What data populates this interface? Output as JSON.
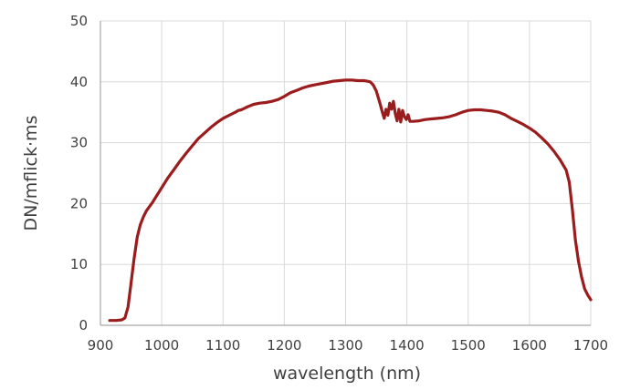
{
  "chart_data": {
    "type": "line",
    "title": "",
    "xlabel": "wavelength (nm)",
    "ylabel": "DN/mflick·ms",
    "xlim": [
      900,
      1700
    ],
    "ylim": [
      0,
      50
    ],
    "xticks": [
      900,
      1000,
      1100,
      1200,
      1300,
      1400,
      1500,
      1600,
      1700
    ],
    "yticks": [
      0,
      10,
      20,
      30,
      40,
      50
    ],
    "grid": true,
    "legend": "none",
    "colors": {
      "series": "#9b1c1c",
      "grid": "#d9d9d9",
      "axis": "#a6a6a6"
    },
    "series": [
      {
        "x": [
          915,
          925,
          935,
          940,
          945,
          950,
          955,
          960,
          965,
          970,
          975,
          980,
          985,
          990,
          1000,
          1010,
          1020,
          1030,
          1040,
          1050,
          1060,
          1070,
          1080,
          1090,
          1100,
          1110,
          1120,
          1125,
          1130,
          1140,
          1150,
          1160,
          1170,
          1180,
          1190,
          1200,
          1210,
          1220,
          1230,
          1240,
          1250,
          1260,
          1270,
          1280,
          1290,
          1300,
          1310,
          1320,
          1330,
          1335,
          1340,
          1345,
          1350,
          1353,
          1356,
          1360,
          1363,
          1366,
          1369,
          1372,
          1375,
          1378,
          1381,
          1384,
          1387,
          1390,
          1393,
          1396,
          1399,
          1402,
          1405,
          1410,
          1420,
          1430,
          1440,
          1450,
          1460,
          1470,
          1480,
          1490,
          1500,
          1510,
          1520,
          1530,
          1540,
          1550,
          1560,
          1570,
          1580,
          1590,
          1600,
          1610,
          1620,
          1630,
          1640,
          1650,
          1660,
          1665,
          1670,
          1675,
          1680,
          1685,
          1690,
          1695,
          1700
        ],
        "y": [
          0.8,
          0.8,
          0.9,
          1.2,
          3,
          7,
          11,
          14.5,
          16.5,
          17.8,
          18.8,
          19.5,
          20.2,
          21,
          22.6,
          24.2,
          25.6,
          27,
          28.3,
          29.5,
          30.7,
          31.6,
          32.5,
          33.3,
          34,
          34.5,
          35,
          35.3,
          35.4,
          35.9,
          36.3,
          36.5,
          36.6,
          36.8,
          37.1,
          37.6,
          38.2,
          38.6,
          39,
          39.3,
          39.5,
          39.7,
          39.9,
          40.1,
          40.2,
          40.3,
          40.3,
          40.2,
          40.2,
          40.1,
          40,
          39.5,
          38.5,
          37.5,
          36.5,
          35,
          34,
          35.5,
          34.5,
          36.5,
          35.5,
          36.8,
          34.8,
          33.6,
          35.5,
          33.4,
          35.3,
          34.3,
          33.8,
          34.6,
          33.5,
          33.5,
          33.6,
          33.8,
          33.9,
          34,
          34.1,
          34.3,
          34.6,
          35,
          35.3,
          35.4,
          35.4,
          35.3,
          35.2,
          35,
          34.6,
          34,
          33.5,
          33,
          32.4,
          31.7,
          30.8,
          29.8,
          28.6,
          27.2,
          25.5,
          23.5,
          19,
          14,
          10.5,
          8,
          6,
          5,
          4.2
        ]
      }
    ]
  }
}
